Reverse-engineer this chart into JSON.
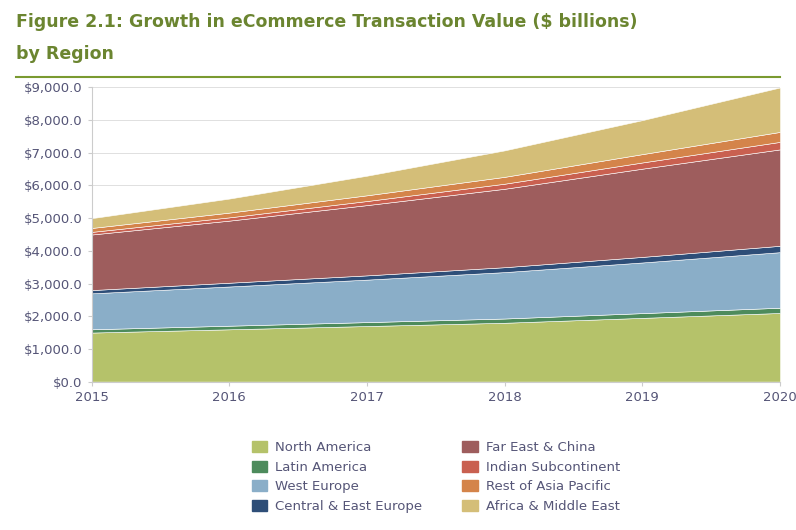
{
  "title_line1": "Figure 2.1: Growth in eCommerce Transaction Value ($ billions)",
  "title_line2": "by Region",
  "years": [
    2015,
    2016,
    2017,
    2018,
    2019,
    2020
  ],
  "series": [
    {
      "label": "North America",
      "color": "#b5c26a",
      "values": [
        1500,
        1600,
        1700,
        1800,
        1950,
        2100
      ]
    },
    {
      "label": "Latin America",
      "color": "#4d8b5c",
      "values": [
        100,
        110,
        120,
        130,
        145,
        160
      ]
    },
    {
      "label": "West Europe",
      "color": "#8aaec8",
      "values": [
        1100,
        1200,
        1300,
        1420,
        1550,
        1700
      ]
    },
    {
      "label": "Central & East Europe",
      "color": "#2e4e78",
      "values": [
        100,
        115,
        130,
        150,
        170,
        195
      ]
    },
    {
      "label": "Far East & China",
      "color": "#9e5d5d",
      "values": [
        1700,
        1900,
        2150,
        2400,
        2700,
        2950
      ]
    },
    {
      "label": "Indian Subcontinent",
      "color": "#c96050",
      "values": [
        80,
        100,
        125,
        155,
        190,
        230
      ]
    },
    {
      "label": "Rest of Asia Pacific",
      "color": "#d4844a",
      "values": [
        120,
        145,
        175,
        210,
        255,
        305
      ]
    },
    {
      "label": "Africa & Middle East",
      "color": "#d4be78",
      "values": [
        300,
        430,
        600,
        810,
        1040,
        1360
      ]
    }
  ],
  "ylim": [
    0,
    9000
  ],
  "ytick_step": 1000,
  "background_color": "#ffffff",
  "title_color": "#6b8530",
  "title_fontsize": 12.5,
  "axis_color": "#555577",
  "tick_fontsize": 9.5,
  "legend_fontsize": 9.5,
  "separator_color": "#7a9a30",
  "legend_order": [
    0,
    1,
    2,
    3,
    4,
    5,
    6,
    7
  ]
}
